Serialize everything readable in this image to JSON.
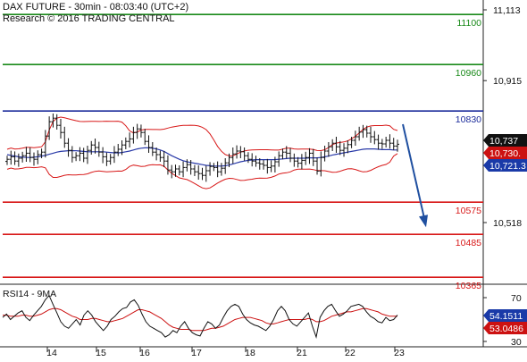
{
  "header": {
    "title": "DAX FUTURE - 30min - 08:03:40 (UTC+2)",
    "research": "Research © 2016 TRADING CENTRAL"
  },
  "colors": {
    "green_level": "#1a8a1a",
    "blue_level": "#1a2a9a",
    "red_level": "#d81818",
    "bollinger": "#d81818",
    "ma": "#2a3aa8",
    "candles": "#111111",
    "arrow": "#1f4fa0",
    "last_price_box": "#111111",
    "red_box": "#cc1111",
    "blue_box": "#1a3aa8",
    "rsi_line": "#111111",
    "rsi_ma": "#cc1111"
  },
  "chart_data": [
    {
      "type": "candlestick",
      "panel": "price",
      "y_tick_labels": [
        "11,113",
        "10,915",
        "10,518"
      ],
      "y_ticks": [
        11113,
        10915,
        10518
      ],
      "ylim": [
        10320,
        11125
      ],
      "x_tick_labels": [
        "14",
        "15",
        "16",
        "17",
        "18",
        "21",
        "22",
        "23"
      ],
      "levels": [
        {
          "value": 11100,
          "label": "11100",
          "color": "green"
        },
        {
          "value": 10960,
          "label": "10960",
          "color": "green"
        },
        {
          "value": 10830,
          "label": "10830",
          "color": "blue"
        },
        {
          "value": 10575,
          "label": "10575",
          "color": "red"
        },
        {
          "value": 10485,
          "label": "10485",
          "color": "red"
        },
        {
          "value": 10365,
          "label": "10365",
          "color": "red"
        }
      ],
      "price_boxes": [
        {
          "label": "10,737",
          "value": 10737,
          "color": "black"
        },
        {
          "label": "10,730.",
          "value": 10730,
          "color": "red"
        },
        {
          "label": "10,721.3",
          "value": 10721.3,
          "color": "blue"
        }
      ],
      "arrow": {
        "from": 10793,
        "to": 10505
      },
      "close": [
        10695,
        10702,
        10690,
        10698,
        10705,
        10712,
        10700,
        10695,
        10708,
        10715,
        10760,
        10800,
        10810,
        10790,
        10770,
        10740,
        10720,
        10700,
        10705,
        10712,
        10698,
        10720,
        10735,
        10728,
        10715,
        10702,
        10690,
        10700,
        10715,
        10723,
        10735,
        10745,
        10752,
        10770,
        10780,
        10770,
        10745,
        10728,
        10715,
        10708,
        10700,
        10690,
        10665,
        10660,
        10668,
        10660,
        10672,
        10680,
        10668,
        10660,
        10655,
        10650,
        10663,
        10675,
        10672,
        10660,
        10670,
        10685,
        10700,
        10710,
        10718,
        10716,
        10705,
        10695,
        10690,
        10685,
        10682,
        10678,
        10672,
        10676,
        10688,
        10705,
        10715,
        10712,
        10698,
        10690,
        10684,
        10692,
        10700,
        10712,
        10690,
        10662,
        10700,
        10718,
        10730,
        10740,
        10730,
        10720,
        10726,
        10736,
        10748,
        10758,
        10771,
        10778,
        10768,
        10758,
        10750,
        10740,
        10738,
        10748,
        10740,
        10732,
        10737
      ],
      "ma_values": [
        10708,
        10706,
        10704,
        10702,
        10701,
        10700,
        10700,
        10701,
        10702,
        10704,
        10706,
        10709,
        10712,
        10715,
        10717,
        10718,
        10719,
        10719,
        10719,
        10718,
        10717,
        10716,
        10716,
        10716,
        10716,
        10716,
        10715,
        10714,
        10713,
        10713,
        10714,
        10716,
        10718,
        10721,
        10724,
        10726,
        10727,
        10727,
        10726,
        10724,
        10721,
        10717,
        10711,
        10705,
        10700,
        10695,
        10691,
        10688,
        10686,
        10684,
        10682,
        10680,
        10678,
        10677,
        10676,
        10676,
        10676,
        10677,
        10679,
        10682,
        10685,
        10688,
        10690,
        10692,
        10693,
        10694,
        10694,
        10694,
        10694,
        10694,
        10694,
        10695,
        10696,
        10697,
        10698,
        10698,
        10698,
        10698,
        10698,
        10699,
        10699,
        10699,
        10700,
        10702,
        10704,
        10707,
        10709,
        10711,
        10713,
        10715,
        10717,
        10719,
        10721,
        10723,
        10724,
        10724,
        10724,
        10723,
        10722,
        10722,
        10722,
        10721,
        10721
      ]
    },
    {
      "type": "line",
      "panel": "rsi",
      "title": "RSI14 - 9MA",
      "y_tick_labels": [
        "70",
        "30"
      ],
      "y_ticks": [
        70,
        30
      ],
      "ylim": [
        25,
        80
      ],
      "value_boxes": [
        {
          "label": "54.1511",
          "value": 54.1511,
          "color": "blue"
        },
        {
          "label": "53.0486",
          "color": "red"
        }
      ],
      "rsi": [
        52,
        55,
        50,
        53,
        56,
        58,
        52,
        49,
        54,
        58,
        62,
        68,
        72,
        64,
        56,
        48,
        44,
        42,
        46,
        50,
        45,
        54,
        58,
        54,
        48,
        44,
        40,
        44,
        50,
        53,
        57,
        60,
        61,
        66,
        68,
        63,
        55,
        48,
        44,
        42,
        40,
        38,
        34,
        36,
        40,
        38,
        44,
        48,
        42,
        38,
        36,
        35,
        42,
        48,
        46,
        42,
        45,
        52,
        58,
        62,
        64,
        62,
        55,
        50,
        47,
        45,
        44,
        42,
        40,
        44,
        50,
        58,
        62,
        58,
        50,
        46,
        44,
        48,
        52,
        56,
        44,
        34,
        52,
        58,
        62,
        64,
        58,
        53,
        55,
        58,
        62,
        63,
        64,
        62,
        57,
        53,
        51,
        48,
        47,
        52,
        49,
        50,
        54.15
      ],
      "rsi_ma": [
        54,
        54,
        53,
        53,
        53,
        54,
        54,
        53,
        53,
        54,
        55,
        57,
        59,
        60,
        60,
        59,
        57,
        55,
        53,
        52,
        50,
        50,
        50,
        51,
        51,
        50,
        49,
        48,
        48,
        49,
        50,
        51,
        53,
        55,
        57,
        59,
        59,
        58,
        57,
        55,
        53,
        51,
        48,
        45,
        43,
        42,
        41,
        41,
        41,
        40,
        40,
        40,
        40,
        41,
        42,
        42,
        43,
        44,
        46,
        48,
        50,
        51,
        52,
        52,
        52,
        51,
        50,
        49,
        47,
        46,
        46,
        47,
        48,
        49,
        50,
        50,
        50,
        50,
        50,
        51,
        50,
        48,
        48,
        49,
        51,
        53,
        54,
        55,
        56,
        57,
        57,
        58,
        59,
        60,
        60,
        59,
        58,
        57,
        55,
        54,
        53,
        53,
        53.05
      ]
    }
  ]
}
